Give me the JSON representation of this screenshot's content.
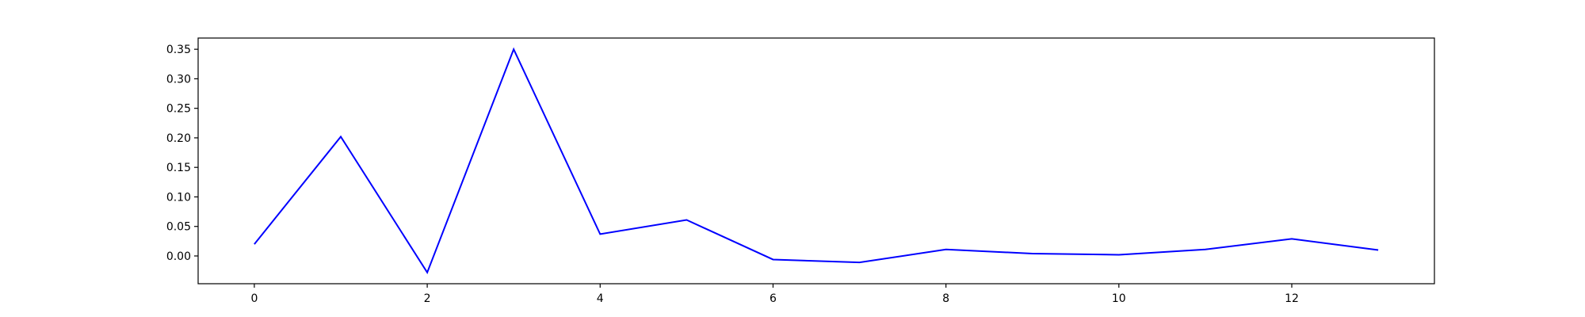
{
  "chart_data": {
    "type": "line",
    "title": "",
    "xlabel": "",
    "ylabel": "",
    "x": [
      0,
      1,
      2,
      3,
      4,
      5,
      6,
      7,
      8,
      9,
      10,
      11,
      12,
      13
    ],
    "series": [
      {
        "color": "#0000ff",
        "values": [
          0.02,
          0.202,
          -0.028,
          0.35,
          0.037,
          0.061,
          -0.006,
          -0.011,
          0.011,
          0.004,
          0.002,
          0.011,
          0.029,
          0.01
        ]
      }
    ],
    "xlim": [
      -0.65,
      13.65
    ],
    "ylim": [
      -0.047,
      0.369
    ],
    "xticks": [
      0,
      2,
      4,
      6,
      8,
      10,
      12
    ],
    "xtick_labels": [
      "0",
      "2",
      "4",
      "6",
      "8",
      "10",
      "12"
    ],
    "yticks": [
      0.0,
      0.05,
      0.1,
      0.15,
      0.2,
      0.25,
      0.3,
      0.35
    ],
    "ytick_labels": [
      "0.00",
      "0.05",
      "0.10",
      "0.15",
      "0.20",
      "0.25",
      "0.30",
      "0.35"
    ],
    "grid": false,
    "legend": "none"
  }
}
